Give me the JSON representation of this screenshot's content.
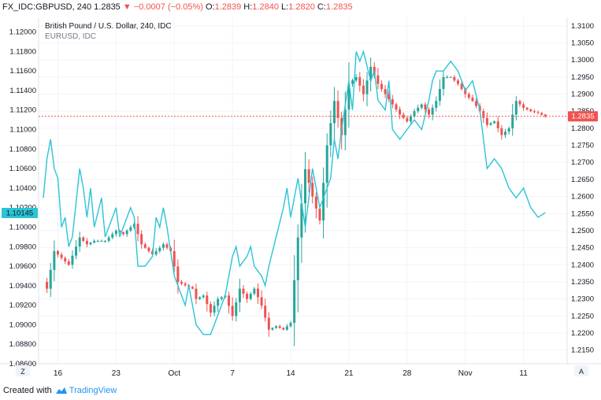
{
  "header": {
    "symbol": "FX_IDC:GBPUSD, 240",
    "last": "1.2835",
    "change": "▼ −0.0007 (−0.05%)",
    "open_label": "O:",
    "open": "1.2839",
    "high_label": "H:",
    "high": "1.2840",
    "low_label": "L:",
    "low": "1.2820",
    "close_label": "C:",
    "close": "1.2835"
  },
  "legend": {
    "title": "British Pound / U.S. Dollar, 240, IDC",
    "subtitle": "EURUSD, IDC"
  },
  "footer": {
    "created_with": "Created with",
    "brand": "TradingView"
  },
  "corner_buttons": {
    "left": "Z",
    "right": "A"
  },
  "colors": {
    "up": "#26a69a",
    "down": "#ef5350",
    "line": "#2bc4d6",
    "price_badge": "#ef5350",
    "eur_badge": "#2bc4d6",
    "grid": "#f0f3fa"
  },
  "chart_data": {
    "type": "line",
    "x_tick_labels": [
      "16",
      "23",
      "Oct",
      "7",
      "14",
      "21",
      "28",
      "Nov",
      "11"
    ],
    "left_axis": {
      "series": "EURUSD",
      "ticks": [
        "1.12000",
        "1.11800",
        "1.11600",
        "1.11400",
        "1.11200",
        "1.11000",
        "1.10800",
        "1.10600",
        "1.10400",
        "1.10200",
        "1.10000",
        "1.09800",
        "1.09600",
        "1.09400",
        "1.09200",
        "1.09000",
        "1.08800",
        "1.08600"
      ],
      "ylim": [
        1.086,
        1.1215
      ],
      "current": "1.10145"
    },
    "right_axis": {
      "series": "GBPUSD",
      "ticks": [
        "1.3100",
        "1.3050",
        "1.3000",
        "1.2950",
        "1.2900",
        "1.2850",
        "1.2800",
        "1.2750",
        "1.2700",
        "1.2650",
        "1.2600",
        "1.2550",
        "1.2500",
        "1.2450",
        "1.2400",
        "1.2350",
        "1.2300",
        "1.2250",
        "1.2200",
        "1.2150"
      ],
      "ylim": [
        1.211,
        1.3125
      ],
      "current": "1.2835"
    },
    "gbpusd_close_path": [
      [
        0,
        1.235
      ],
      [
        0.5,
        1.233
      ],
      [
        1.5,
        1.244
      ],
      [
        2.5,
        1.242
      ],
      [
        3.5,
        1.24
      ],
      [
        5,
        1.248
      ],
      [
        6,
        1.246
      ],
      [
        7,
        1.247
      ],
      [
        8.5,
        1.247
      ],
      [
        10,
        1.25
      ],
      [
        11,
        1.249
      ],
      [
        12.5,
        1.252
      ],
      [
        13.5,
        1.246
      ],
      [
        15,
        1.243
      ],
      [
        16.5,
        1.246
      ],
      [
        17.5,
        1.244
      ],
      [
        18.5,
        1.235
      ],
      [
        19.5,
        1.234
      ],
      [
        20.5,
        1.233
      ],
      [
        21,
        1.23
      ],
      [
        22,
        1.231
      ],
      [
        23,
        1.226
      ],
      [
        24,
        1.23
      ],
      [
        25,
        1.231
      ],
      [
        26,
        1.225
      ],
      [
        27,
        1.233
      ],
      [
        28,
        1.23
      ],
      [
        29,
        1.233
      ],
      [
        30,
        1.228
      ],
      [
        31,
        1.221
      ],
      [
        32,
        1.222
      ],
      [
        33,
        1.221
      ],
      [
        34,
        1.223
      ],
      [
        35,
        1.248
      ],
      [
        36,
        1.268
      ],
      [
        37,
        1.26
      ],
      [
        38,
        1.253
      ],
      [
        39,
        1.275
      ],
      [
        40,
        1.288
      ],
      [
        41,
        1.278
      ],
      [
        42,
        1.293
      ],
      [
        43,
        1.295
      ],
      [
        44,
        1.29
      ],
      [
        45,
        1.298
      ],
      [
        46,
        1.293
      ],
      [
        47,
        1.29
      ],
      [
        48,
        1.287
      ],
      [
        49,
        1.284
      ],
      [
        50,
        1.282
      ],
      [
        51,
        1.285
      ],
      [
        52,
        1.287
      ],
      [
        53,
        1.284
      ],
      [
        54,
        1.288
      ],
      [
        55,
        1.295
      ],
      [
        56,
        1.295
      ],
      [
        57,
        1.293
      ],
      [
        58,
        1.29
      ],
      [
        59,
        1.288
      ],
      [
        60,
        1.285
      ],
      [
        61,
        1.281
      ],
      [
        62,
        1.282
      ],
      [
        63,
        1.278
      ],
      [
        64,
        1.28
      ],
      [
        65,
        1.288
      ],
      [
        66,
        1.286
      ],
      [
        67,
        1.285
      ],
      [
        68,
        1.2845
      ],
      [
        69,
        1.2835
      ]
    ],
    "eurusd_path": [
      [
        0,
        1.103
      ],
      [
        0.5,
        1.107
      ],
      [
        1,
        1.109
      ],
      [
        1.5,
        1.106
      ],
      [
        2,
        1.105
      ],
      [
        2.5,
        1.1
      ],
      [
        3,
        1.101
      ],
      [
        3.5,
        1.098
      ],
      [
        4,
        1.099
      ],
      [
        5,
        1.106
      ],
      [
        5.5,
        1.104
      ],
      [
        6,
        1.101
      ],
      [
        6.5,
        1.104
      ],
      [
        7,
        1.1
      ],
      [
        8,
        1.103
      ],
      [
        8.5,
        1.099
      ],
      [
        9,
        1.1
      ],
      [
        10,
        1.102
      ],
      [
        10.5,
        1.099
      ],
      [
        11,
        1.1
      ],
      [
        12,
        1.102
      ],
      [
        12.5,
        1.101
      ],
      [
        13,
        1.096
      ],
      [
        14,
        1.096
      ],
      [
        15,
        1.097
      ],
      [
        15.5,
        1.101
      ],
      [
        16,
        1.1
      ],
      [
        16.5,
        1.102
      ],
      [
        17,
        1.1
      ],
      [
        18,
        1.095
      ],
      [
        19,
        1.093
      ],
      [
        19.5,
        1.092
      ],
      [
        20,
        1.094
      ],
      [
        21,
        1.09
      ],
      [
        22,
        1.089
      ],
      [
        23,
        1.089
      ],
      [
        23.5,
        1.09
      ],
      [
        24,
        1.091
      ],
      [
        25,
        1.093
      ],
      [
        25.5,
        1.095
      ],
      [
        26,
        1.097
      ],
      [
        26.5,
        1.098
      ],
      [
        27,
        1.096
      ],
      [
        28,
        1.097
      ],
      [
        28.5,
        1.098
      ],
      [
        29,
        1.096
      ],
      [
        30,
        1.095
      ],
      [
        30.5,
        1.094
      ],
      [
        31,
        1.096
      ],
      [
        32,
        1.099
      ],
      [
        33,
        1.102
      ],
      [
        33.5,
        1.104
      ],
      [
        34,
        1.101
      ],
      [
        35,
        1.105
      ],
      [
        36,
        1.1
      ],
      [
        37,
        1.106
      ],
      [
        38,
        1.102
      ],
      [
        39,
        1.104
      ],
      [
        39.5,
        1.105
      ],
      [
        40,
        1.109
      ],
      [
        40.5,
        1.107
      ],
      [
        41,
        1.11
      ],
      [
        42,
        1.115
      ],
      [
        42.5,
        1.112
      ],
      [
        43,
        1.118
      ],
      [
        43.5,
        1.117
      ],
      [
        44,
        1.118
      ],
      [
        45,
        1.115
      ],
      [
        45.5,
        1.116
      ],
      [
        46,
        1.113
      ],
      [
        47,
        1.112
      ],
      [
        47.5,
        1.115
      ],
      [
        48,
        1.11
      ],
      [
        49,
        1.109
      ],
      [
        50,
        1.11
      ],
      [
        51,
        1.111
      ],
      [
        52,
        1.11
      ],
      [
        53,
        1.113
      ],
      [
        53.5,
        1.115
      ],
      [
        54,
        1.116
      ],
      [
        55,
        1.116
      ],
      [
        56,
        1.117
      ],
      [
        57,
        1.116
      ],
      [
        58,
        1.114
      ],
      [
        59,
        1.115
      ],
      [
        60,
        1.112
      ],
      [
        61,
        1.106
      ],
      [
        62,
        1.107
      ],
      [
        63,
        1.106
      ],
      [
        64,
        1.104
      ],
      [
        65,
        1.103
      ],
      [
        66,
        1.104
      ],
      [
        67,
        1.102
      ],
      [
        68,
        1.101
      ],
      [
        69,
        1.1015
      ]
    ]
  }
}
